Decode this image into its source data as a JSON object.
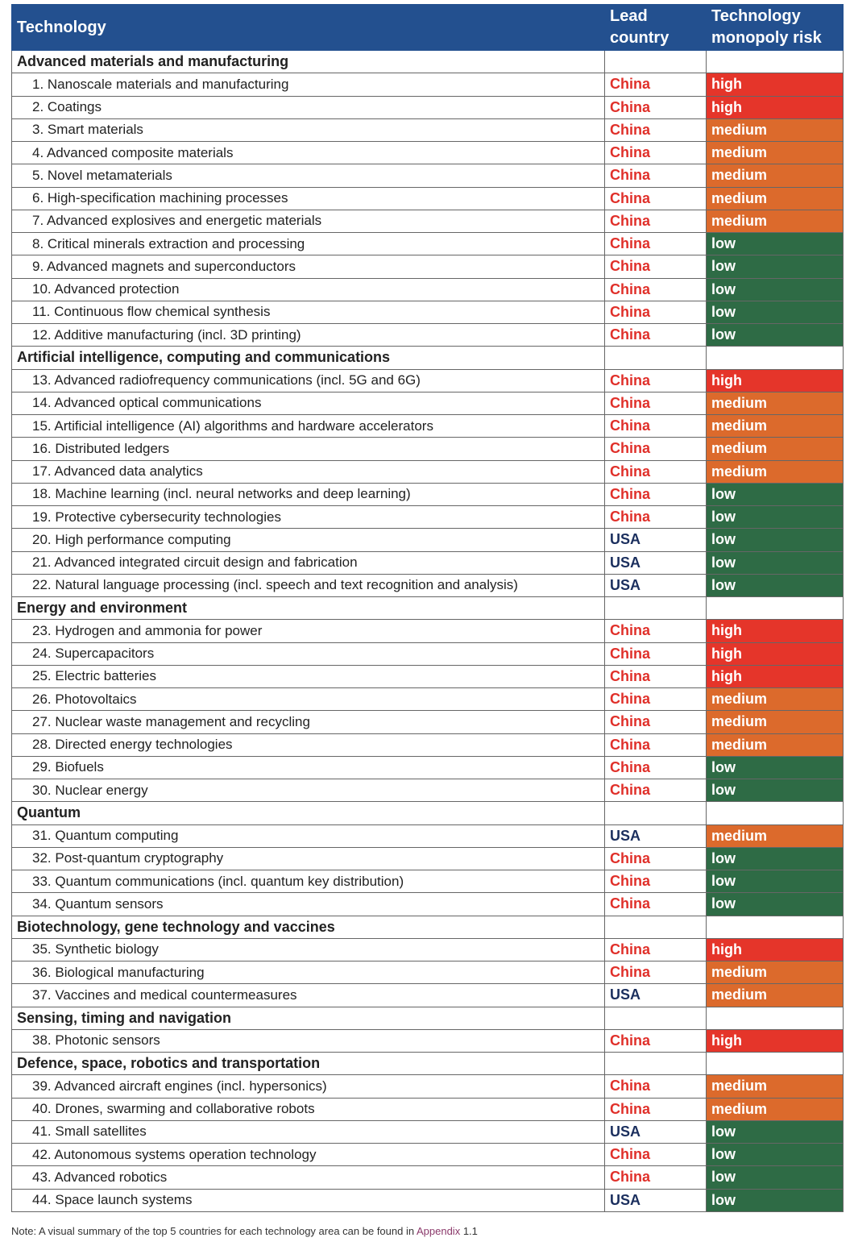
{
  "header": {
    "technology": "Technology",
    "lead_country": "Lead country",
    "monopoly_risk": "Technology monopoly risk"
  },
  "sections": [
    {
      "title": "Advanced materials and manufacturing",
      "items": [
        {
          "name": "1. Nanoscale materials and manufacturing",
          "country": "China",
          "risk": "high"
        },
        {
          "name": "2. Coatings",
          "country": "China",
          "risk": "high"
        },
        {
          "name": "3. Smart materials",
          "country": "China",
          "risk": "medium"
        },
        {
          "name": "4. Advanced composite materials",
          "country": "China",
          "risk": "medium"
        },
        {
          "name": "5. Novel metamaterials",
          "country": "China",
          "risk": "medium"
        },
        {
          "name": "6. High-specification machining processes",
          "country": "China",
          "risk": "medium"
        },
        {
          "name": "7. Advanced explosives and energetic materials",
          "country": "China",
          "risk": "medium"
        },
        {
          "name": "8. Critical minerals extraction and processing",
          "country": "China",
          "risk": "low"
        },
        {
          "name": "9. Advanced magnets and superconductors",
          "country": "China",
          "risk": "low"
        },
        {
          "name": "10. Advanced protection",
          "country": "China",
          "risk": "low"
        },
        {
          "name": "11. Continuous flow chemical synthesis",
          "country": "China",
          "risk": "low"
        },
        {
          "name": "12. Additive manufacturing (incl. 3D printing)",
          "country": "China",
          "risk": "low"
        }
      ]
    },
    {
      "title": "Artificial intelligence, computing and communications",
      "items": [
        {
          "name": "13. Advanced radiofrequency communications (incl. 5G and 6G)",
          "country": "China",
          "risk": "high"
        },
        {
          "name": "14. Advanced optical communications",
          "country": "China",
          "risk": "medium"
        },
        {
          "name": "15. Artificial intelligence (AI) algorithms and hardware accelerators",
          "country": "China",
          "risk": "medium"
        },
        {
          "name": "16. Distributed ledgers",
          "country": "China",
          "risk": "medium"
        },
        {
          "name": "17. Advanced data analytics",
          "country": "China",
          "risk": "medium"
        },
        {
          "name": "18. Machine learning (incl. neural networks and deep learning)",
          "country": "China",
          "risk": "low"
        },
        {
          "name": "19. Protective cybersecurity technologies",
          "country": "China",
          "risk": "low"
        },
        {
          "name": "20. High performance computing",
          "country": "USA",
          "risk": "low"
        },
        {
          "name": "21. Advanced integrated circuit design and fabrication",
          "country": "USA",
          "risk": "low"
        },
        {
          "name": "22. Natural language processing (incl. speech and text recognition and analysis)",
          "country": "USA",
          "risk": "low"
        }
      ]
    },
    {
      "title": "Energy and environment",
      "items": [
        {
          "name": "23. Hydrogen and ammonia for power",
          "country": "China",
          "risk": "high"
        },
        {
          "name": "24. Supercapacitors",
          "country": "China",
          "risk": "high"
        },
        {
          "name": "25. Electric batteries",
          "country": "China",
          "risk": "high"
        },
        {
          "name": "26. Photovoltaics",
          "country": "China",
          "risk": "medium"
        },
        {
          "name": "27. Nuclear waste management and recycling",
          "country": "China",
          "risk": "medium"
        },
        {
          "name": "28. Directed energy technologies",
          "country": "China",
          "risk": "medium"
        },
        {
          "name": "29. Biofuels",
          "country": "China",
          "risk": "low"
        },
        {
          "name": "30. Nuclear energy",
          "country": "China",
          "risk": "low"
        }
      ]
    },
    {
      "title": "Quantum",
      "items": [
        {
          "name": "31. Quantum computing",
          "country": "USA",
          "risk": "medium"
        },
        {
          "name": "32. Post-quantum cryptography",
          "country": "China",
          "risk": "low"
        },
        {
          "name": "33. Quantum communications (incl. quantum key distribution)",
          "country": "China",
          "risk": "low"
        },
        {
          "name": "34. Quantum sensors",
          "country": "China",
          "risk": "low"
        }
      ]
    },
    {
      "title": "Biotechnology, gene technology and vaccines",
      "items": [
        {
          "name": "35. Synthetic biology",
          "country": "China",
          "risk": "high"
        },
        {
          "name": "36. Biological manufacturing",
          "country": "China",
          "risk": "medium"
        },
        {
          "name": "37. Vaccines and medical countermeasures",
          "country": "USA",
          "risk": "medium"
        }
      ]
    },
    {
      "title": "Sensing, timing and navigation",
      "items": [
        {
          "name": "38. Photonic sensors",
          "country": "China",
          "risk": "high"
        }
      ]
    },
    {
      "title": "Defence, space, robotics and transportation",
      "items": [
        {
          "name": "39. Advanced aircraft engines (incl. hypersonics)",
          "country": "China",
          "risk": "medium"
        },
        {
          "name": "40. Drones, swarming and collaborative robots",
          "country": "China",
          "risk": "medium"
        },
        {
          "name": "41. Small satellites",
          "country": "USA",
          "risk": "low"
        },
        {
          "name": "42. Autonomous systems operation technology",
          "country": "China",
          "risk": "low"
        },
        {
          "name": "43. Advanced robotics",
          "country": "China",
          "risk": "low"
        },
        {
          "name": "44. Space launch systems",
          "country": "USA",
          "risk": "low"
        }
      ]
    }
  ],
  "note": {
    "text": "Note: A visual summary of the top 5 countries for each technology area can be found in",
    "link": "Appendix",
    "suffix": "1.1"
  }
}
